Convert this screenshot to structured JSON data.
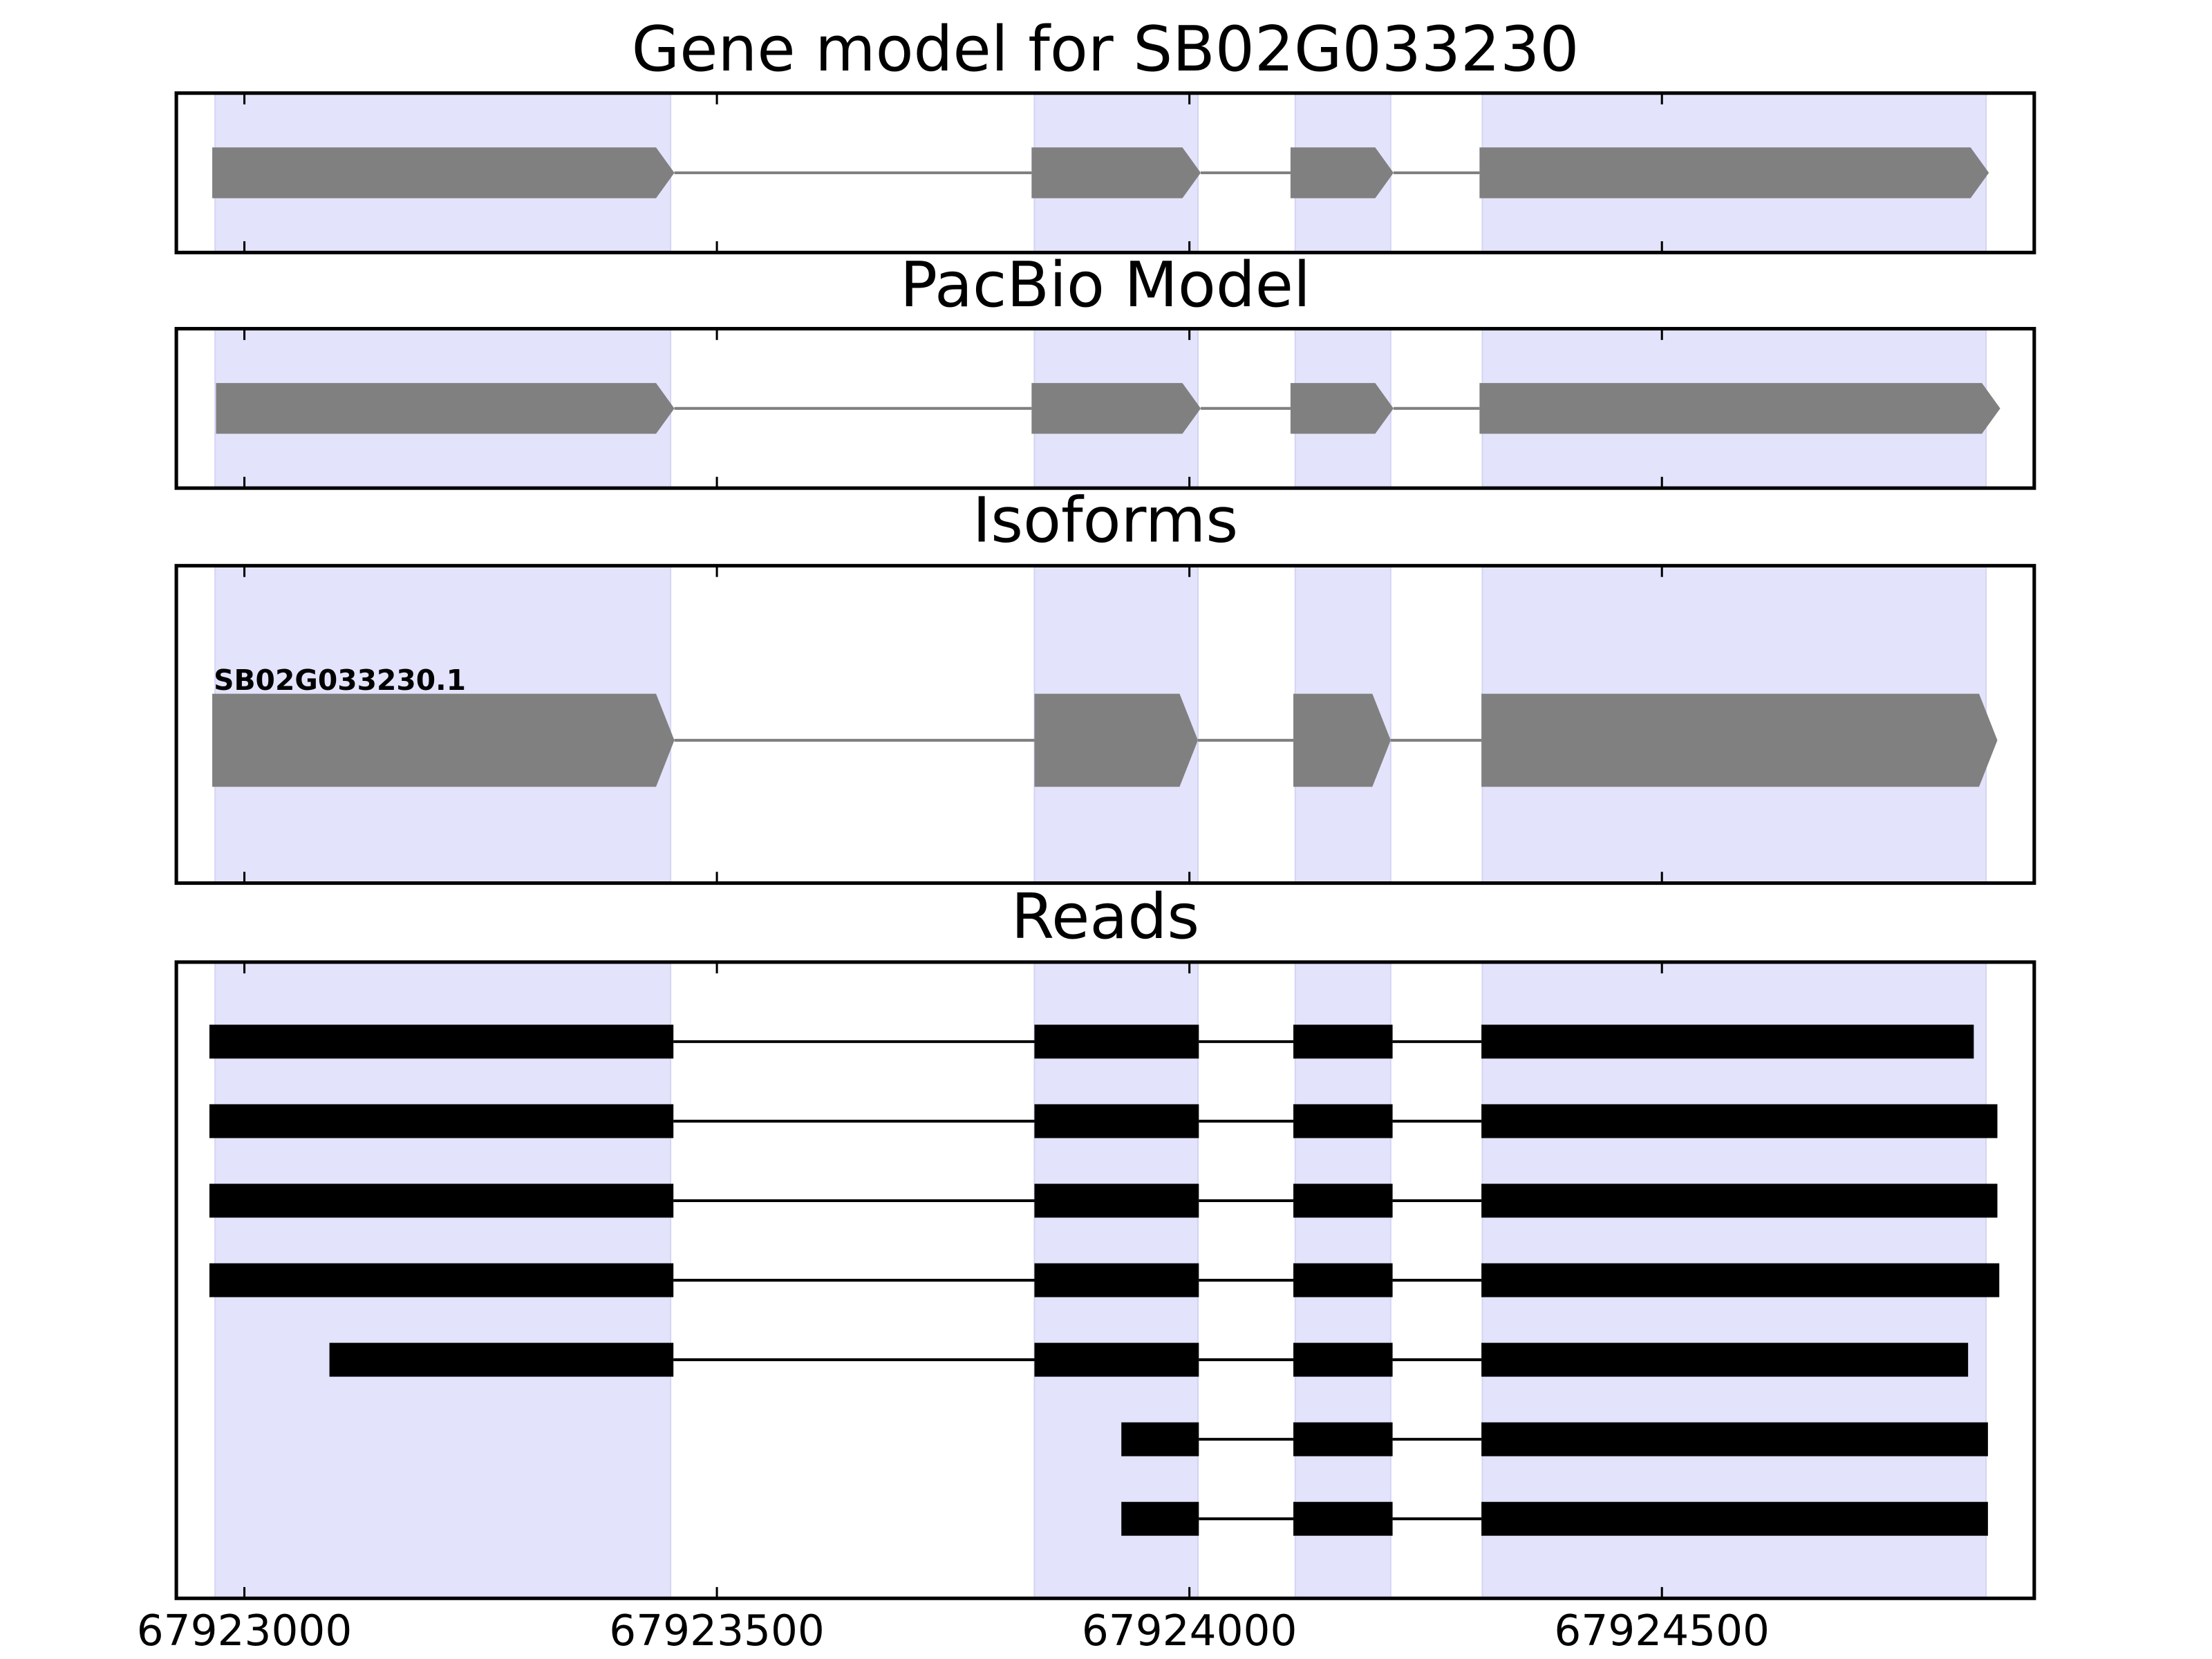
{
  "chart_data": {
    "type": "gene_tracks",
    "xlim": [
      67922928,
      67924894
    ],
    "xticks": [
      67923000,
      67923500,
      67924000,
      67924500
    ],
    "shaded_regions": [
      [
        67922969,
        67923451
      ],
      [
        67923836,
        67924009
      ],
      [
        67924112,
        67924213
      ],
      [
        67924310,
        67924843
      ]
    ],
    "shade_color": "#e3e3fb",
    "panels": [
      {
        "title": "Gene model for SB02G033230",
        "style": "arrow",
        "color": "#808080",
        "tracks": [
          {
            "exons": [
              [
                67922966,
                67923455
              ],
              [
                67923833,
                67924012
              ],
              [
                67924107,
                67924216
              ],
              [
                67924307,
                67924846
              ]
            ]
          }
        ]
      },
      {
        "title": "PacBio Model",
        "style": "arrow",
        "color": "#808080",
        "tracks": [
          {
            "exons": [
              [
                67922970,
                67923455
              ],
              [
                67923833,
                67924012
              ],
              [
                67924107,
                67924216
              ],
              [
                67924307,
                67924858
              ]
            ]
          }
        ]
      },
      {
        "title": "Isoforms",
        "style": "arrow",
        "color": "#808080",
        "tracks": [
          {
            "label": "SB02G033230.1",
            "exons": [
              [
                67922966,
                67923455
              ],
              [
                67923836,
                67924009
              ],
              [
                67924110,
                67924213
              ],
              [
                67924309,
                67924855
              ]
            ]
          }
        ]
      },
      {
        "title": "Reads",
        "style": "bar",
        "color": "#000000",
        "tracks": [
          {
            "exons": [
              [
                67922963,
                67923454
              ],
              [
                67923836,
                67924010
              ],
              [
                67924110,
                67924215
              ],
              [
                67924309,
                67924830
              ]
            ]
          },
          {
            "exons": [
              [
                67922963,
                67923454
              ],
              [
                67923836,
                67924010
              ],
              [
                67924110,
                67924215
              ],
              [
                67924309,
                67924855
              ]
            ]
          },
          {
            "exons": [
              [
                67922963,
                67923454
              ],
              [
                67923836,
                67924010
              ],
              [
                67924110,
                67924215
              ],
              [
                67924309,
                67924855
              ]
            ]
          },
          {
            "exons": [
              [
                67922963,
                67923454
              ],
              [
                67923836,
                67924010
              ],
              [
                67924110,
                67924215
              ],
              [
                67924309,
                67924857
              ]
            ]
          },
          {
            "exons": [
              [
                67923090,
                67923454
              ],
              [
                67923836,
                67924010
              ],
              [
                67924110,
                67924215
              ],
              [
                67924309,
                67924824
              ]
            ]
          },
          {
            "exons": [
              [
                67923928,
                67924010
              ],
              [
                67924110,
                67924215
              ],
              [
                67924309,
                67924845
              ]
            ]
          },
          {
            "exons": [
              [
                67923928,
                67924010
              ],
              [
                67924110,
                67924215
              ],
              [
                67924309,
                67924845
              ]
            ]
          }
        ]
      }
    ]
  }
}
